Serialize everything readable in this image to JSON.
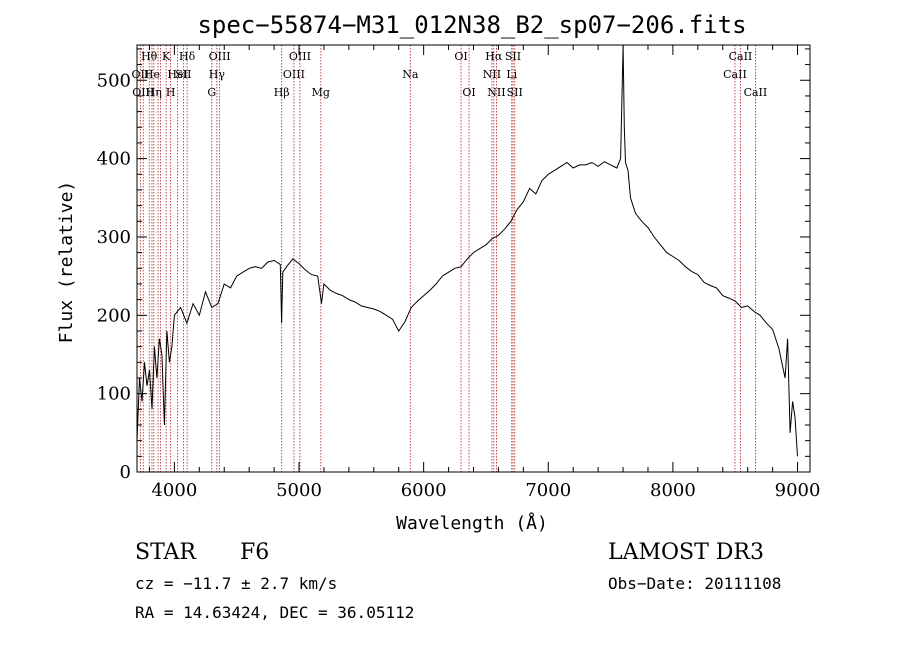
{
  "chart_data": {
    "type": "line",
    "title": "spec−55874−M31_012N38_B2_sp07−206.fits",
    "xlabel": "Wavelength (Å)",
    "ylabel": "Flux (relative)",
    "xlim": [
      3700,
      9100
    ],
    "ylim": [
      0,
      545
    ],
    "x_ticks": [
      4000,
      5000,
      6000,
      7000,
      8000,
      9000
    ],
    "y_ticks": [
      0,
      100,
      200,
      300,
      400,
      500
    ],
    "series": [
      {
        "color": "#000000",
        "x": [
          3700,
          3720,
          3740,
          3760,
          3780,
          3800,
          3820,
          3840,
          3860,
          3880,
          3900,
          3920,
          3940,
          3960,
          3980,
          4000,
          4050,
          4100,
          4150,
          4200,
          4250,
          4300,
          4350,
          4400,
          4450,
          4500,
          4550,
          4600,
          4650,
          4700,
          4750,
          4800,
          4850,
          4860,
          4870,
          4900,
          4950,
          5000,
          5050,
          5100,
          5150,
          5180,
          5200,
          5250,
          5300,
          5350,
          5400,
          5450,
          5500,
          5550,
          5600,
          5650,
          5700,
          5750,
          5800,
          5850,
          5900,
          5950,
          6000,
          6050,
          6100,
          6150,
          6200,
          6250,
          6300,
          6350,
          6400,
          6450,
          6500,
          6550,
          6600,
          6650,
          6700,
          6750,
          6800,
          6850,
          6900,
          6950,
          7000,
          7050,
          7100,
          7150,
          7200,
          7250,
          7300,
          7350,
          7400,
          7450,
          7500,
          7550,
          7580,
          7600,
          7610,
          7620,
          7640,
          7660,
          7700,
          7750,
          7800,
          7850,
          7900,
          7950,
          8000,
          8050,
          8100,
          8150,
          8200,
          8250,
          8300,
          8350,
          8400,
          8450,
          8500,
          8550,
          8600,
          8650,
          8700,
          8750,
          8800,
          8850,
          8900,
          8920,
          8940,
          8960,
          8980,
          9000
        ],
        "y": [
          40,
          120,
          90,
          140,
          110,
          130,
          80,
          160,
          120,
          170,
          150,
          60,
          180,
          140,
          160,
          200,
          210,
          190,
          215,
          200,
          230,
          210,
          215,
          240,
          235,
          250,
          255,
          260,
          262,
          260,
          268,
          270,
          265,
          190,
          255,
          262,
          272,
          266,
          258,
          252,
          250,
          215,
          240,
          232,
          228,
          225,
          220,
          217,
          212,
          210,
          208,
          205,
          200,
          195,
          180,
          192,
          210,
          218,
          225,
          232,
          240,
          250,
          255,
          260,
          262,
          272,
          280,
          285,
          290,
          298,
          302,
          310,
          320,
          335,
          345,
          362,
          355,
          372,
          380,
          385,
          390,
          395,
          388,
          392,
          392,
          395,
          390,
          396,
          392,
          388,
          400,
          545,
          440,
          395,
          385,
          350,
          330,
          320,
          312,
          300,
          290,
          280,
          275,
          270,
          262,
          256,
          252,
          242,
          238,
          235,
          225,
          222,
          218,
          210,
          212,
          205,
          200,
          190,
          182,
          158,
          120,
          170,
          50,
          90,
          70,
          20
        ]
      }
    ],
    "lines": [
      {
        "wavelength": 3727,
        "label": "OII",
        "row": 1
      },
      {
        "wavelength": 3750,
        "label": "OIII",
        "row": 2
      },
      {
        "wavelength": 3798,
        "label": "Hθ",
        "row": 0
      },
      {
        "wavelength": 3820,
        "label": "He",
        "row": 1
      },
      {
        "wavelength": 3835,
        "label": "Hη",
        "row": 2
      },
      {
        "wavelength": 3869,
        "label": "",
        "row": 0
      },
      {
        "wavelength": 3889,
        "label": "",
        "row": 0
      },
      {
        "wavelength": 3934,
        "label": "K",
        "row": 0
      },
      {
        "wavelength": 3970,
        "label": "H",
        "row": 2
      },
      {
        "wavelength": 4026,
        "label": "HeI",
        "row": 1
      },
      {
        "wavelength": 4072,
        "label": "SII",
        "row": 1
      },
      {
        "wavelength": 4102,
        "label": "Hδ",
        "row": 0
      },
      {
        "wavelength": 4300,
        "label": "G",
        "row": 2
      },
      {
        "wavelength": 4341,
        "label": "Hγ",
        "row": 1
      },
      {
        "wavelength": 4363,
        "label": "OIII",
        "row": 0
      },
      {
        "wavelength": 4861,
        "label": "Hβ",
        "row": 2
      },
      {
        "wavelength": 4959,
        "label": "OIII",
        "row": 1
      },
      {
        "wavelength": 5007,
        "label": "OIII",
        "row": 0
      },
      {
        "wavelength": 5175,
        "label": "Mg",
        "row": 2
      },
      {
        "wavelength": 5893,
        "label": "Na",
        "row": 1
      },
      {
        "wavelength": 6300,
        "label": "OI",
        "row": 0
      },
      {
        "wavelength": 6364,
        "label": "OI",
        "row": 2
      },
      {
        "wavelength": 6548,
        "label": "NII",
        "row": 1
      },
      {
        "wavelength": 6563,
        "label": "Hα",
        "row": 0
      },
      {
        "wavelength": 6584,
        "label": "NII",
        "row": 2
      },
      {
        "wavelength": 6707,
        "label": "Li",
        "row": 1
      },
      {
        "wavelength": 6717,
        "label": "SII",
        "row": 0
      },
      {
        "wavelength": 6731,
        "label": "SII",
        "row": 2
      },
      {
        "wavelength": 8498,
        "label": "CaII",
        "row": 1
      },
      {
        "wavelength": 8542,
        "label": "CaII",
        "row": 0
      },
      {
        "wavelength": 8662,
        "label": "CaII",
        "row": 2
      }
    ]
  },
  "info": {
    "star_class": "STAR",
    "subclass": "F6",
    "survey": "LAMOST DR3",
    "cz": "cz = −11.7 ± 2.7 km/s",
    "obs_date": "Obs−Date: 20111108",
    "radec": "RA =  14.63424, DEC =  36.05112"
  }
}
